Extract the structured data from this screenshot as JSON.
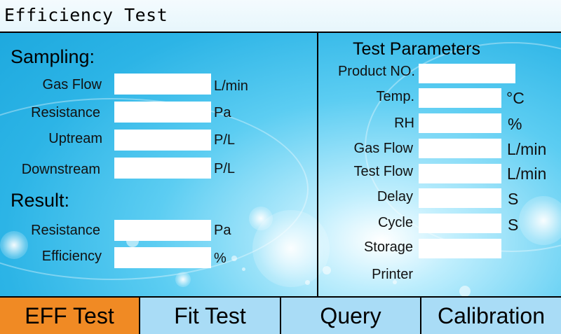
{
  "title": "Efficiency Test",
  "sampling": {
    "heading": "Sampling:",
    "rows": [
      {
        "label": "Gas Flow",
        "value": "",
        "unit": "L/min"
      },
      {
        "label": "Resistance",
        "value": "",
        "unit": "Pa"
      },
      {
        "label": "Uptream",
        "value": "",
        "unit": "P/L"
      },
      {
        "label": "Downstream",
        "value": "",
        "unit": "P/L"
      }
    ]
  },
  "result": {
    "heading": "Result:",
    "rows": [
      {
        "label": "Resistance",
        "value": "",
        "unit": "Pa"
      },
      {
        "label": "Efficiency",
        "value": "",
        "unit": "%"
      }
    ]
  },
  "parameters": {
    "heading": "Test Parameters",
    "rows": [
      {
        "label": "Product NO.",
        "value": "",
        "unit": ""
      },
      {
        "label": "Temp.",
        "value": "",
        "unit": "°C"
      },
      {
        "label": "RH",
        "value": "",
        "unit": "%"
      },
      {
        "label": "Gas Flow",
        "value": "",
        "unit": "L/min"
      },
      {
        "label": "Test Flow",
        "value": "",
        "unit": "L/min"
      },
      {
        "label": "Delay",
        "value": "",
        "unit": "S"
      },
      {
        "label": "Cycle",
        "value": "",
        "unit": "S"
      },
      {
        "label": "Storage",
        "value": "",
        "unit": ""
      },
      {
        "label": "Printer",
        "value": "",
        "unit": ""
      }
    ]
  },
  "tabs": [
    {
      "label": "EFF Test",
      "active": true
    },
    {
      "label": "Fit Test",
      "active": false
    },
    {
      "label": "Query",
      "active": false
    },
    {
      "label": "Calibration",
      "active": false
    }
  ],
  "colors": {
    "background": "#2cb4e6",
    "tab_active": "#f08a24",
    "tab_inactive": "#a9dcf6",
    "field": "#ffffff"
  }
}
